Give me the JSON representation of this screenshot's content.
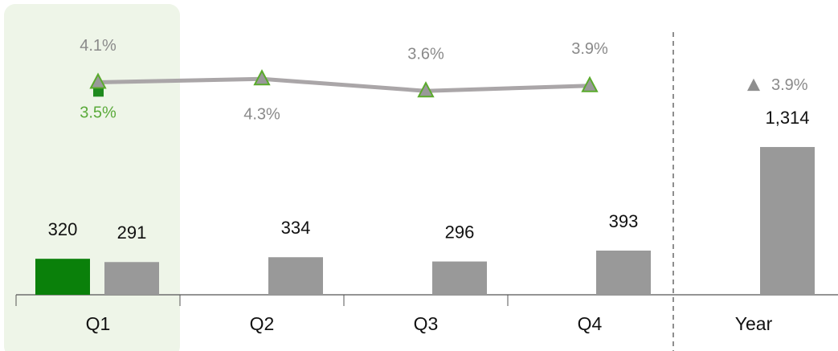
{
  "chart_data": {
    "type": "bar",
    "categories": [
      "Q1",
      "Q2",
      "Q3",
      "Q4",
      "Year"
    ],
    "ylim": [
      0,
      2600
    ],
    "y2lim": [
      0,
      6
    ],
    "series": [
      {
        "type": "bar",
        "color": "#0a800a",
        "values": [
          320,
          null,
          null,
          null,
          null
        ]
      },
      {
        "type": "bar",
        "color": "#999999",
        "values": [
          291,
          334,
          296,
          393,
          1314
        ],
        "value_labels": [
          "291",
          "334",
          "296",
          "393",
          "1,314"
        ]
      },
      {
        "type": "line",
        "axis": "y2",
        "color": "#aaa6a8",
        "marker": "triangle",
        "marker_color": "#999999",
        "marker_edge": "#5aaa2c",
        "values": [
          4.1,
          4.3,
          3.6,
          3.9,
          null
        ],
        "value_labels": [
          "4.1%",
          "4.3%",
          "3.6%",
          "3.9%",
          null
        ]
      },
      {
        "type": "line",
        "axis": "y2",
        "color": "#1e8a1e",
        "marker": "square",
        "label_color": "#5aaa3a",
        "values": [
          3.5,
          null,
          null,
          null,
          null
        ],
        "value_labels": [
          "3.5%",
          null,
          null,
          null,
          null
        ]
      },
      {
        "type": "line",
        "axis": "y2",
        "color": "#8f8f8f",
        "marker": "triangle",
        "marker_color": "#8f8f8f",
        "values": [
          null,
          null,
          null,
          null,
          3.9
        ],
        "value_labels": [
          null,
          null,
          null,
          null,
          "3.9%"
        ]
      }
    ]
  }
}
